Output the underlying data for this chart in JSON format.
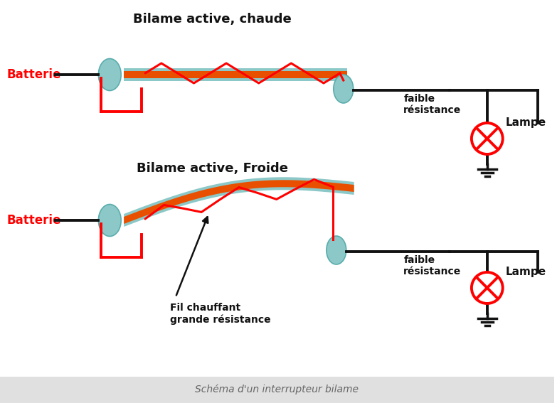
{
  "title_top": "Bilame active, chaude",
  "title_mid": "Bilame active, Froide",
  "label_batterie": "Batterie",
  "label_lampe": "Lampe",
  "label_faible": "faible\nrésistance",
  "label_fil": "Fil chauffant\ngrande résistance",
  "label_schema": "Schéma d'un interrupteur bilame",
  "bg_color": "#ffffff",
  "footer_color": "#e0e0e0",
  "red": "#ff0000",
  "orange": "#e85000",
  "teal": "#8cc8c8",
  "dark": "#111111"
}
